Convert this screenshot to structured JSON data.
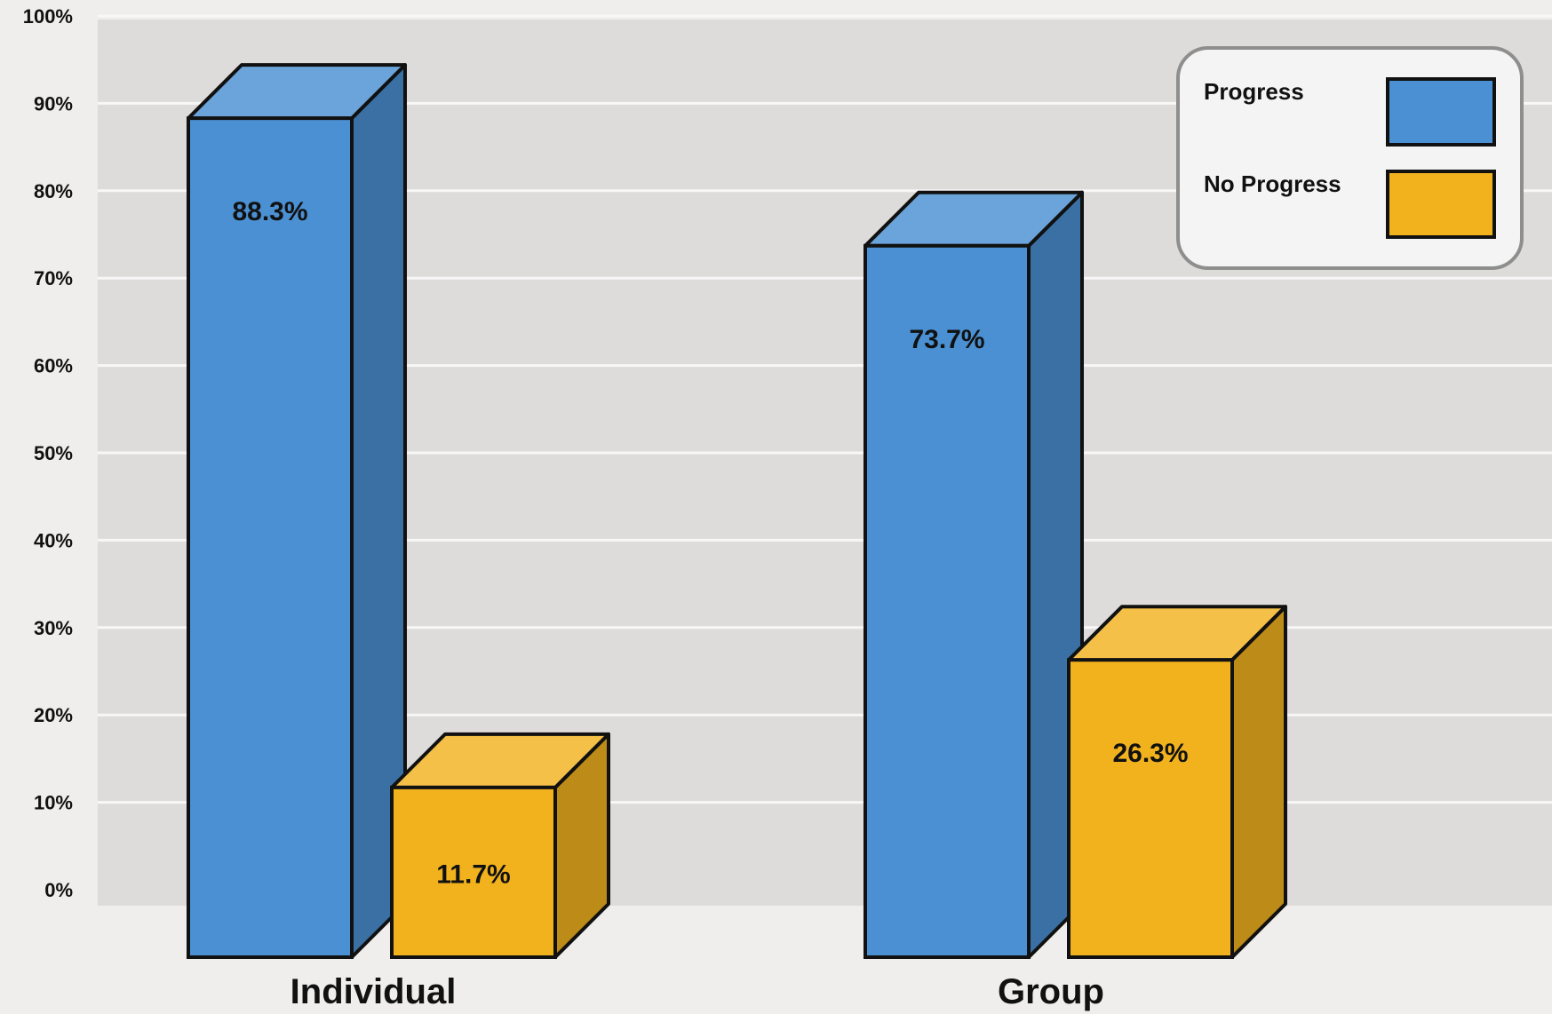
{
  "chart_data": {
    "type": "bar",
    "categories": [
      "Individual",
      "Group"
    ],
    "series": [
      {
        "name": "Progress",
        "values": [
          88.3,
          73.7
        ],
        "labels": [
          "88.3%",
          "73.7%"
        ],
        "color": "#4a90d2"
      },
      {
        "name": "No Progress",
        "values": [
          11.7,
          26.3
        ],
        "labels": [
          "11.7%",
          "26.3%"
        ],
        "color": "#f2b21e"
      }
    ],
    "ylim": [
      0,
      100
    ],
    "yticks": [
      "0%",
      "10%",
      "20%",
      "30%",
      "40%",
      "50%",
      "60%",
      "70%",
      "80%",
      "90%",
      "100%"
    ],
    "grid": true,
    "legend": "top-right",
    "title": "",
    "xlabel": "",
    "ylabel": ""
  }
}
